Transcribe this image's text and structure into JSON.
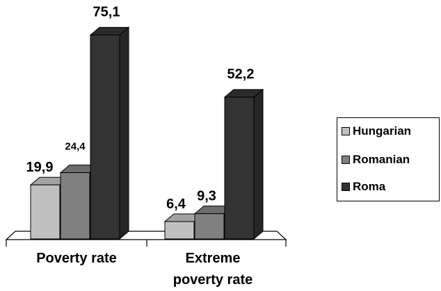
{
  "chart_data": {
    "type": "bar",
    "categories": [
      "Poverty rate",
      "Extreme poverty rate"
    ],
    "series": [
      {
        "name": "Hungarian",
        "values": [
          19.9,
          6.4
        ],
        "labels": [
          "19,9",
          "6,4"
        ]
      },
      {
        "name": "Romanian",
        "values": [
          24.4,
          9.3
        ],
        "labels": [
          "24,4",
          "9,3"
        ]
      },
      {
        "name": "Roma",
        "values": [
          75.1,
          52.2
        ],
        "labels": [
          "75,1",
          "52,2"
        ]
      }
    ],
    "title": "",
    "xlabel": "",
    "ylabel": "",
    "ylim": [
      0,
      80
    ],
    "grid": false,
    "legend": "right",
    "colors": {
      "Hungarian": "#c0c0c0",
      "Romanian": "#808080",
      "Roma": "#333333"
    }
  }
}
